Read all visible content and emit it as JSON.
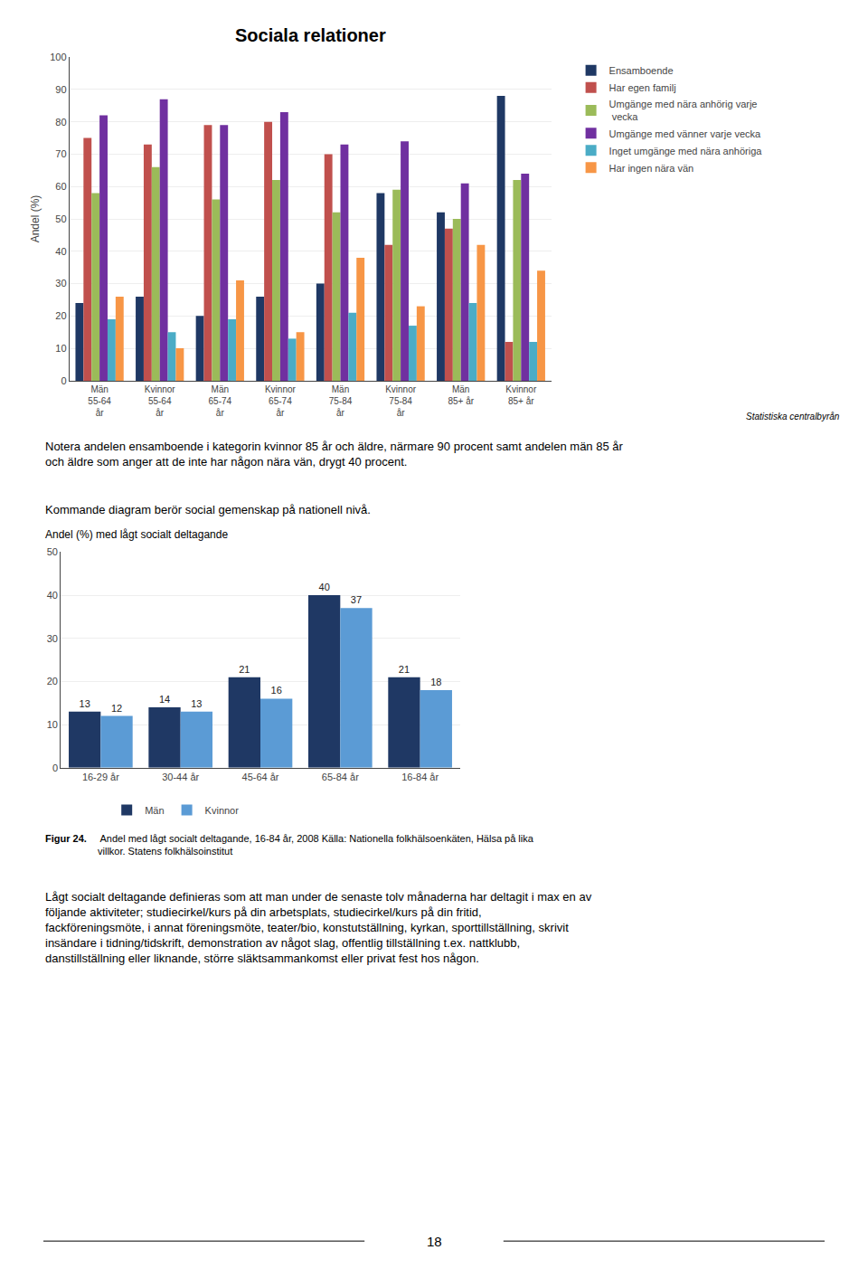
{
  "chart_data": [
    {
      "type": "bar",
      "title": "Sociala relationer",
      "ylabel": "Andel (%)",
      "categories": [
        "Män\n55-64\når",
        "Kvinnor\n55-64\når",
        "Män\n65-74\når",
        "Kvinnor\n65-74\når",
        "Män\n75-84\når",
        "Kvinnor\n75-84\når",
        "Män\n85+ år",
        "Kvinnor\n85+ år"
      ],
      "series": [
        {
          "name": "Ensamboende",
          "color": "#1F3864",
          "values": [
            24,
            26,
            20,
            26,
            30,
            58,
            52,
            88
          ]
        },
        {
          "name": "Har egen familj",
          "color": "#C0504D",
          "values": [
            75,
            73,
            79,
            80,
            70,
            42,
            47,
            12
          ]
        },
        {
          "name": "Umgänge med nära anhörig varje\n vecka",
          "color": "#9BBB59",
          "values": [
            58,
            66,
            56,
            62,
            52,
            59,
            50,
            62
          ]
        },
        {
          "name": "Umgänge med vänner varje vecka",
          "color": "#7030A0",
          "values": [
            82,
            87,
            79,
            83,
            73,
            74,
            61,
            64
          ]
        },
        {
          "name": "Inget umgänge med nära anhöriga",
          "color": "#4BACC6",
          "values": [
            19,
            15,
            19,
            13,
            21,
            17,
            24,
            12
          ]
        },
        {
          "name": "Har ingen nära vän",
          "color": "#F79646",
          "values": [
            26,
            10,
            31,
            15,
            38,
            23,
            42,
            34
          ]
        }
      ],
      "ylim": [
        0,
        100
      ],
      "yticks": [
        0,
        10,
        20,
        30,
        40,
        50,
        60,
        70,
        80,
        90,
        100
      ],
      "grid": true,
      "legend": "right",
      "annotations": [
        "Statistiska centralbyrån",
        "Notera andelen ensamboende i kategorin kvinnor 85 år och äldre, närmare 90 procent samt andelen män 85 år och äldre som anger att de inte har någon nära vän, drygt 40 procent.",
        "Kommande diagram berör social gemenskap på nationell nivå."
      ]
    },
    {
      "type": "bar",
      "title": "Andel (%) med lågt socialt deltagande",
      "categories": [
        "16-29 år",
        "30-44 år",
        "45-64 år",
        "65-84 år",
        "16-84 år"
      ],
      "series": [
        {
          "name": "Män",
          "color": "#1F3864",
          "values": [
            13,
            14,
            21,
            40,
            21
          ]
        },
        {
          "name": "Kvinnor",
          "color": "#5B9BD5",
          "values": [
            12,
            13,
            16,
            37,
            18
          ]
        }
      ],
      "ylim": [
        0,
        50
      ],
      "yticks": [
        0,
        10,
        20,
        30,
        40,
        50
      ],
      "grid": true,
      "legend": "bottom",
      "data_labels": true,
      "annotations": [
        "Figur 24.",
        " Andel med lågt socialt deltagande, 16-84 år, 2008 Källa: Nationella folkhälsoenkäten, Hälsa på lika villkor. Statens folkhälsoinstitut",
        "Lågt socialt deltagande definieras som att man under de senaste tolv månaderna har deltagit i max en av följande aktiviteter; studiecirkel/kurs på din arbetsplats, studiecirkel/kurs på din fritid, fackföreningsmöte, i annat föreningsmöte, teater/bio, konstutställning, kyrkan, sporttillställning, skrivit insändare i tidning/tidskrift, demonstration av något slag, offentlig tillställning t.ex. nattklubb, danstillställning eller liknande, större släktsammankomst eller privat fest hos någon.",
        "18"
      ]
    }
  ]
}
